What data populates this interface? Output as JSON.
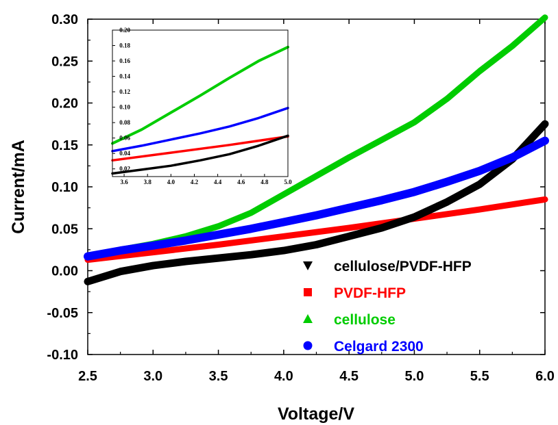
{
  "chart_data": [
    {
      "type": "line",
      "role": "main",
      "xlabel": "Voltage/V",
      "ylabel": "Current/mA",
      "xlim": [
        2.5,
        6.0
      ],
      "ylim": [
        -0.1,
        0.3
      ],
      "xticks": [
        "2.5",
        "3.0",
        "3.5",
        "4.0",
        "4.5",
        "5.0",
        "5.5",
        "6.0"
      ],
      "yticks": [
        "-0.10",
        "-0.05",
        "0.00",
        "0.05",
        "0.10",
        "0.15",
        "0.20",
        "0.25",
        "0.30"
      ],
      "grid": false,
      "legend_position": "bottom-right",
      "series": [
        {
          "name": "cellulose/PVDF-HFP",
          "color": "#000000",
          "marker": "triangle-down",
          "x": [
            2.5,
            2.75,
            3.0,
            3.25,
            3.5,
            3.75,
            4.0,
            4.25,
            4.5,
            4.75,
            5.0,
            5.25,
            5.5,
            5.75,
            6.0
          ],
          "y": [
            -0.013,
            -0.001,
            0.006,
            0.011,
            0.015,
            0.019,
            0.024,
            0.031,
            0.041,
            0.051,
            0.064,
            0.082,
            0.103,
            0.133,
            0.175
          ]
        },
        {
          "name": "PVDF-HFP",
          "color": "#ff0000",
          "marker": "square",
          "x": [
            2.5,
            3.0,
            3.5,
            4.0,
            4.5,
            5.0,
            5.5,
            6.0
          ],
          "y": [
            0.013,
            0.022,
            0.031,
            0.041,
            0.051,
            0.062,
            0.073,
            0.085
          ]
        },
        {
          "name": "cellulose",
          "color": "#00cc00",
          "marker": "triangle-up",
          "x": [
            2.5,
            2.75,
            3.0,
            3.25,
            3.5,
            3.75,
            4.0,
            4.25,
            4.5,
            4.75,
            5.0,
            5.25,
            5.5,
            5.75,
            6.0
          ],
          "y": [
            0.017,
            0.025,
            0.032,
            0.041,
            0.053,
            0.069,
            0.091,
            0.113,
            0.135,
            0.156,
            0.177,
            0.205,
            0.238,
            0.268,
            0.302
          ]
        },
        {
          "name": "Celgard 2300",
          "color": "#0000ff",
          "marker": "circle",
          "x": [
            2.5,
            2.75,
            3.0,
            3.25,
            3.5,
            3.75,
            4.0,
            4.25,
            4.5,
            4.75,
            5.0,
            5.25,
            5.5,
            5.75,
            6.0
          ],
          "y": [
            0.017,
            0.024,
            0.03,
            0.036,
            0.043,
            0.05,
            0.058,
            0.066,
            0.075,
            0.084,
            0.094,
            0.106,
            0.119,
            0.135,
            0.155
          ]
        }
      ]
    },
    {
      "type": "line",
      "role": "inset",
      "xlim": [
        3.5,
        5.0
      ],
      "ylim": [
        0.01,
        0.2
      ],
      "xticks": [
        "3.6",
        "3.8",
        "4.0",
        "4.2",
        "4.4",
        "4.6",
        "4.8",
        "5.0"
      ],
      "yticks": [
        "0.02",
        "0.04",
        "0.06",
        "0.08",
        "0.10",
        "0.12",
        "0.14",
        "0.16",
        "0.18",
        "0.20"
      ],
      "series": [
        {
          "name": "cellulose/PVDF-HFP",
          "color": "#000000",
          "x": [
            3.5,
            3.75,
            4.0,
            4.25,
            4.5,
            4.75,
            5.0
          ],
          "y": [
            0.014,
            0.019,
            0.024,
            0.031,
            0.039,
            0.05,
            0.063
          ]
        },
        {
          "name": "PVDF-HFP",
          "color": "#ff0000",
          "x": [
            3.5,
            4.0,
            4.5,
            5.0
          ],
          "y": [
            0.031,
            0.041,
            0.051,
            0.062
          ]
        },
        {
          "name": "cellulose",
          "color": "#00cc00",
          "x": [
            3.5,
            3.75,
            4.0,
            4.25,
            4.5,
            4.75,
            5.0
          ],
          "y": [
            0.053,
            0.071,
            0.093,
            0.115,
            0.138,
            0.16,
            0.178
          ]
        },
        {
          "name": "Celgard 2300",
          "color": "#0000ff",
          "x": [
            3.5,
            3.75,
            4.0,
            4.25,
            4.5,
            4.75,
            5.0
          ],
          "y": [
            0.043,
            0.05,
            0.058,
            0.066,
            0.075,
            0.086,
            0.099
          ]
        }
      ]
    }
  ]
}
